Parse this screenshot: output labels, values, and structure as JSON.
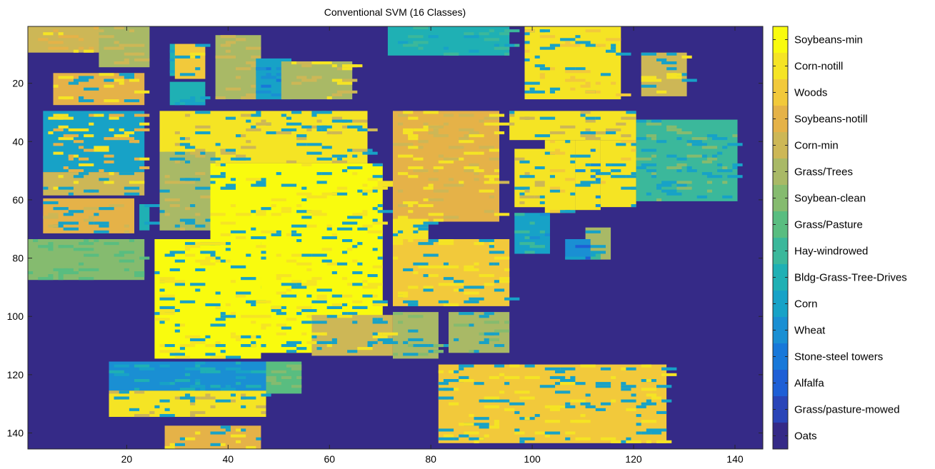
{
  "chart_data": {
    "type": "heatmap",
    "title": "Conventional SVM (16 Classes)",
    "xlabel": "",
    "ylabel": "",
    "x_range": [
      0.5,
      145.5
    ],
    "y_range": [
      0.5,
      145.5
    ],
    "y_reversed": true,
    "x_ticks": [
      20,
      40,
      60,
      80,
      100,
      120,
      140
    ],
    "y_ticks": [
      20,
      40,
      60,
      80,
      100,
      120,
      140
    ],
    "grid": false,
    "background_class": "Oats",
    "colorbar": {
      "placement": "right",
      "classes": [
        {
          "name": "Soybeans-min",
          "color": "#f9fb0e"
        },
        {
          "name": "Corn-notill",
          "color": "#f5e424"
        },
        {
          "name": "Woods",
          "color": "#f2c93b"
        },
        {
          "name": "Soybeans-notill",
          "color": "#e5b248"
        },
        {
          "name": "Corn-min",
          "color": "#cdb756"
        },
        {
          "name": "Grass/Trees",
          "color": "#a9b966"
        },
        {
          "name": "Soybean-clean",
          "color": "#85bb6f"
        },
        {
          "name": "Grass/Pasture",
          "color": "#59bd80"
        },
        {
          "name": "Hay-windrowed",
          "color": "#3bb89b"
        },
        {
          "name": "Bldg-Grass-Tree-Drives",
          "color": "#1fb0b4"
        },
        {
          "name": "Corn",
          "color": "#17a2c7"
        },
        {
          "name": "Wheat",
          "color": "#1a8fd3"
        },
        {
          "name": "Stone-steel towers",
          "color": "#1878d9"
        },
        {
          "name": "Alfalfa",
          "color": "#1e5fd6"
        },
        {
          "name": "Grass/pasture-mowed",
          "color": "#2a45b8"
        },
        {
          "name": "Oats",
          "color": "#352a87"
        }
      ]
    },
    "regions": [
      {
        "cls": "Corn-min",
        "x": [
          1,
          23
        ],
        "y": [
          1,
          9
        ],
        "noise": [
          "Corn-notill",
          "Soybeans-notill"
        ]
      },
      {
        "cls": "Grass/Trees",
        "x": [
          15,
          24
        ],
        "y": [
          1,
          14
        ],
        "noise": [
          "Corn-min"
        ]
      },
      {
        "cls": "Bldg-Grass-Tree-Drives",
        "x": [
          29,
          32
        ],
        "y": [
          7,
          17
        ],
        "noise": [
          "Corn"
        ]
      },
      {
        "cls": "Woods",
        "x": [
          30,
          35
        ],
        "y": [
          7,
          18
        ],
        "noise": [
          "Corn",
          "Corn-notill"
        ]
      },
      {
        "cls": "Bldg-Grass-Tree-Drives",
        "x": [
          29,
          35
        ],
        "y": [
          20,
          27
        ],
        "noise": [
          "Corn"
        ]
      },
      {
        "cls": "Grass/Trees",
        "x": [
          38,
          46
        ],
        "y": [
          4,
          25
        ],
        "noise": [
          "Corn-min"
        ]
      },
      {
        "cls": "Corn",
        "x": [
          46,
          52
        ],
        "y": [
          12,
          25
        ],
        "noise": [
          "Wheat",
          "Stone-steel towers"
        ]
      },
      {
        "cls": "Grass/Trees",
        "x": [
          51,
          64
        ],
        "y": [
          13,
          25
        ],
        "noise": [
          "Corn-min",
          "Corn-notill"
        ]
      },
      {
        "cls": "Soybeans-notill",
        "x": [
          6,
          23
        ],
        "y": [
          17,
          27
        ],
        "noise": [
          "Corn-notill",
          "Corn"
        ]
      },
      {
        "cls": "Bldg-Grass-Tree-Drives",
        "x": [
          72,
          95
        ],
        "y": [
          1,
          10
        ],
        "noise": [
          "Corn",
          "Hay-windrowed"
        ]
      },
      {
        "cls": "Corn-notill",
        "x": [
          99,
          117
        ],
        "y": [
          1,
          25
        ],
        "noise": [
          "Corn",
          "Woods"
        ]
      },
      {
        "cls": "Corn-min",
        "x": [
          122,
          130
        ],
        "y": [
          10,
          24
        ],
        "noise": [
          "Corn",
          "Corn-notill"
        ]
      },
      {
        "cls": "Corn",
        "x": [
          4,
          23
        ],
        "y": [
          30,
          50
        ],
        "noise": [
          "Corn-notill",
          "Soybeans-notill"
        ]
      },
      {
        "cls": "Corn-notill",
        "x": [
          27,
          67
        ],
        "y": [
          30,
          47
        ],
        "noise": [
          "Corn-min",
          "Corn"
        ]
      },
      {
        "cls": "Corn-min",
        "x": [
          4,
          23
        ],
        "y": [
          51,
          58
        ],
        "noise": [
          "Corn-notill",
          "Corn"
        ]
      },
      {
        "cls": "Grass/Trees",
        "x": [
          27,
          37
        ],
        "y": [
          44,
          70
        ],
        "noise": [
          "Corn",
          "Corn-min"
        ]
      },
      {
        "cls": "Soybeans-notill",
        "x": [
          4,
          21
        ],
        "y": [
          60,
          71
        ],
        "noise": [
          "Corn-min",
          "Corn"
        ]
      },
      {
        "cls": "Bldg-Grass-Tree-Drives",
        "x": [
          23,
          24
        ],
        "y": [
          62,
          70
        ],
        "noise": [
          "Corn"
        ]
      },
      {
        "cls": "Soybeans-min",
        "x": [
          37,
          70
        ],
        "y": [
          48,
          112
        ],
        "noise": [
          "Corn-notill",
          "Corn"
        ]
      },
      {
        "cls": "Soybean-clean",
        "x": [
          1,
          23
        ],
        "y": [
          74,
          87
        ],
        "noise": [
          "Grass/Pasture"
        ]
      },
      {
        "cls": "Soybeans-min",
        "x": [
          26,
          46
        ],
        "y": [
          74,
          114
        ],
        "noise": [
          "Corn",
          "Corn-notill"
        ]
      },
      {
        "cls": "Soybeans-notill",
        "x": [
          73,
          93
        ],
        "y": [
          30,
          67
        ],
        "noise": [
          "Corn-notill",
          "Corn-min"
        ]
      },
      {
        "cls": "Corn-notill",
        "x": [
          96,
          120
        ],
        "y": [
          30,
          39
        ],
        "noise": [
          "Corn",
          "Corn-min"
        ]
      },
      {
        "cls": "Corn-notill",
        "x": [
          97,
          103
        ],
        "y": [
          43,
          62
        ],
        "noise": [
          "Corn",
          "Corn-min"
        ]
      },
      {
        "cls": "Corn-notill",
        "x": [
          103,
          108
        ],
        "y": [
          40,
          64
        ],
        "noise": [
          "Corn",
          "Woods"
        ]
      },
      {
        "cls": "Corn-notill",
        "x": [
          109,
          113
        ],
        "y": [
          40,
          63
        ],
        "noise": [
          "Corn",
          "Wheat"
        ]
      },
      {
        "cls": "Corn-notill",
        "x": [
          114,
          120
        ],
        "y": [
          40,
          62
        ],
        "noise": [
          "Corn",
          "Woods"
        ]
      },
      {
        "cls": "Hay-windrowed",
        "x": [
          121,
          140
        ],
        "y": [
          33,
          60
        ],
        "noise": [
          "Corn",
          "Soybean-clean"
        ]
      },
      {
        "cls": "Corn",
        "x": [
          97,
          103
        ],
        "y": [
          65,
          78
        ],
        "noise": [
          "Wheat",
          "Hay-windrowed"
        ]
      },
      {
        "cls": "Corn-notill",
        "x": [
          73,
          79
        ],
        "y": [
          67,
          73
        ],
        "noise": [
          "Corn"
        ]
      },
      {
        "cls": "Woods",
        "x": [
          73,
          95
        ],
        "y": [
          74,
          96
        ],
        "noise": [
          "Corn",
          "Corn-notill"
        ]
      },
      {
        "cls": "Grass/Trees",
        "x": [
          73,
          81
        ],
        "y": [
          99,
          114
        ],
        "noise": [
          "Corn",
          "Soybean-clean"
        ]
      },
      {
        "cls": "Grass/Trees",
        "x": [
          84,
          95
        ],
        "y": [
          99,
          112
        ],
        "noise": [
          "Corn",
          "Soybean-clean"
        ]
      },
      {
        "cls": "Corn-min",
        "x": [
          57,
          72
        ],
        "y": [
          100,
          113
        ],
        "noise": [
          "Corn",
          "Corn-notill"
        ]
      },
      {
        "cls": "Wheat",
        "x": [
          17,
          47
        ],
        "y": [
          116,
          125
        ],
        "noise": [
          "Corn",
          "Bldg-Grass-Tree-Drives"
        ]
      },
      {
        "cls": "Corn-notill",
        "x": [
          17,
          47
        ],
        "y": [
          126,
          134
        ],
        "noise": [
          "Corn-min",
          "Corn"
        ]
      },
      {
        "cls": "Grass/Pasture",
        "x": [
          48,
          54
        ],
        "y": [
          116,
          126
        ],
        "noise": [
          "Soybean-clean"
        ]
      },
      {
        "cls": "Woods",
        "x": [
          82,
          126
        ],
        "y": [
          117,
          143
        ],
        "noise": [
          "Corn",
          "Corn-notill"
        ]
      },
      {
        "cls": "Soybeans-notill",
        "x": [
          28,
          46
        ],
        "y": [
          138,
          145
        ],
        "noise": [
          "Corn-notill",
          "Corn"
        ]
      },
      {
        "cls": "Grass/Trees",
        "x": [
          111,
          115
        ],
        "y": [
          70,
          80
        ],
        "noise": [
          "Corn",
          "Hay-windrowed"
        ]
      },
      {
        "cls": "Wheat",
        "x": [
          107,
          111
        ],
        "y": [
          74,
          80
        ],
        "noise": [
          "Alfalfa",
          "Corn"
        ]
      }
    ]
  }
}
